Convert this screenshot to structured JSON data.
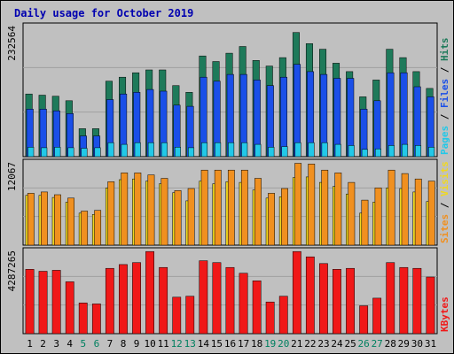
{
  "chart_data": {
    "title": "Daily usage for October 2019",
    "days": [
      "1",
      "2",
      "3",
      "4",
      "5",
      "6",
      "7",
      "8",
      "9",
      "10",
      "11",
      "12",
      "13",
      "14",
      "15",
      "16",
      "17",
      "18",
      "19",
      "20",
      "21",
      "22",
      "23",
      "24",
      "25",
      "26",
      "27",
      "28",
      "29",
      "30",
      "31"
    ],
    "weekend_days": [
      "5",
      "6",
      "12",
      "13",
      "19",
      "20",
      "26",
      "27"
    ],
    "panels": [
      {
        "type": "bar",
        "max_label": "232564",
        "ymax": 232564,
        "series": [
          {
            "name": "Hits",
            "color": "#1e7a5a",
            "values": [
              112000,
              110000,
              108000,
              100000,
              50000,
              50000,
              135000,
              142000,
              150000,
              155000,
              155000,
              127000,
              115000,
              180000,
              170000,
              185000,
              197000,
              172000,
              162000,
              177000,
              222000,
              202000,
              192000,
              167000,
              152000,
              107000,
              137000,
              192000,
              177000,
              152000,
              122000
            ]
          },
          {
            "name": "Files",
            "color": "#1a4fe8",
            "values": [
              85000,
              85000,
              82000,
              77000,
              37000,
              37000,
              102000,
              112000,
              115000,
              120000,
              117000,
              92000,
              90000,
              142000,
              135000,
              147000,
              147000,
              137000,
              127000,
              142000,
              165000,
              152000,
              147000,
              140000,
              140000,
              85000,
              100000,
              150000,
              150000,
              125000,
              107000
            ]
          },
          {
            "name": "Pages",
            "color": "#22c8e8",
            "values": [
              17000,
              16000,
              17000,
              16000,
              15000,
              16000,
              25000,
              22000,
              25000,
              25000,
              25000,
              17000,
              16000,
              25000,
              25000,
              25000,
              25000,
              22000,
              17000,
              18000,
              25000,
              25000,
              25000,
              22000,
              20000,
              13000,
              14000,
              20000,
              22000,
              20000,
              17000
            ]
          }
        ],
        "legend": [
          "Pages",
          "Files",
          "Hits"
        ]
      },
      {
        "type": "bar",
        "max_label": "12067",
        "ymax": 12067,
        "series": [
          {
            "name": "Visits",
            "color": "#f0d820",
            "values": [
              7300,
              7300,
              7000,
              6300,
              4700,
              4500,
              8400,
              9600,
              9700,
              9400,
              9000,
              7700,
              6500,
              9400,
              9000,
              9300,
              9200,
              8100,
              6900,
              7100,
              9900,
              10000,
              9200,
              8600,
              7500,
              4700,
              6300,
              8400,
              8300,
              7800,
              6400
            ]
          },
          {
            "name": "Sites",
            "color": "#f09020",
            "values": [
              7600,
              7800,
              7400,
              6900,
              5000,
              5100,
              9300,
              10600,
              10600,
              10300,
              9800,
              8000,
              8300,
              11000,
              11000,
              11000,
              11000,
              9800,
              7600,
              8300,
              12000,
              11900,
              11000,
              10600,
              9200,
              6600,
              8400,
              11000,
              10500,
              9700,
              9400
            ]
          }
        ],
        "legend": [
          "Sites",
          "Visits"
        ]
      },
      {
        "type": "bar",
        "max_label": "4287265",
        "ymax": 4287265,
        "series": [
          {
            "name": "KBytes",
            "color": "#f01818",
            "values": [
              3350000,
              3250000,
              3300000,
              2700000,
              1600000,
              1550000,
              3400000,
              3600000,
              3700000,
              4280000,
              3450000,
              1900000,
              1950000,
              3800000,
              3700000,
              3450000,
              3150000,
              2750000,
              1650000,
              1950000,
              4280000,
              4000000,
              3650000,
              3350000,
              3400000,
              1450000,
              1850000,
              3700000,
              3450000,
              3400000,
              2950000
            ]
          }
        ],
        "legend": [
          "KBytes"
        ]
      }
    ]
  }
}
